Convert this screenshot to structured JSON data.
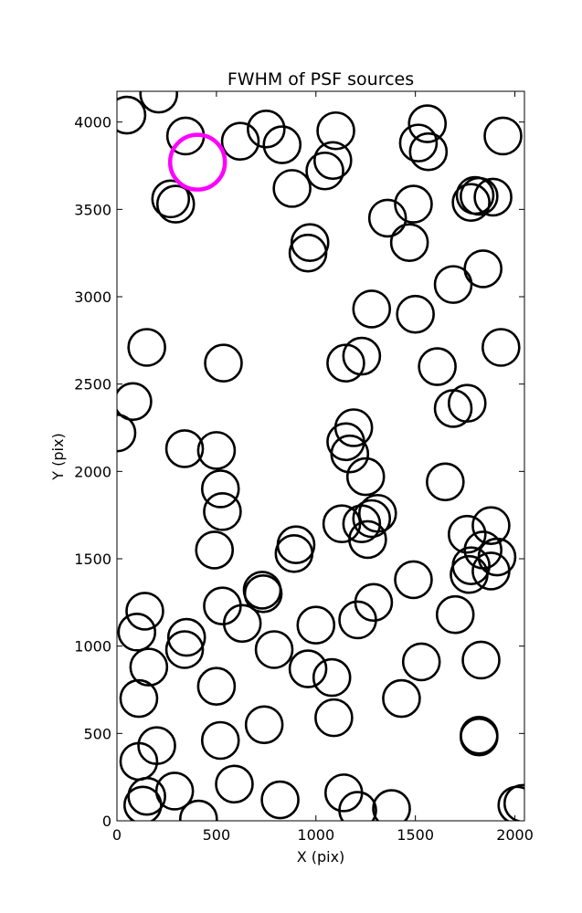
{
  "chart_data": {
    "type": "scatter",
    "title": "FWHM of PSF sources",
    "xlabel": "X (pix)",
    "ylabel": "Y (pix)",
    "xlim": [
      0,
      2048
    ],
    "ylim": [
      0,
      4176
    ],
    "grid": false,
    "xticks": [
      0,
      500,
      1000,
      1500,
      2000
    ],
    "yticks": [
      0,
      500,
      1000,
      1500,
      2000,
      2500,
      3000,
      3500,
      4000
    ],
    "marker": "hollow-circle",
    "default_color": "#000000",
    "highlight_color": "#ff00ff",
    "series": [
      {
        "points": [
          [
            50,
            4040
          ],
          [
            210,
            4160
          ],
          [
            345,
            3920
          ],
          [
            620,
            3890
          ],
          [
            750,
            3960
          ],
          [
            830,
            3870
          ],
          [
            1100,
            3950
          ],
          [
            1560,
            3990
          ],
          [
            1515,
            3880
          ],
          [
            1565,
            3830
          ],
          [
            1940,
            3920
          ],
          [
            1085,
            3780
          ],
          [
            1045,
            3720
          ],
          [
            880,
            3620
          ],
          [
            270,
            3560
          ],
          [
            295,
            3530
          ],
          [
            1490,
            3530
          ],
          [
            1780,
            3540
          ],
          [
            1800,
            3580
          ],
          [
            1820,
            3575
          ],
          [
            1890,
            3570
          ],
          [
            1360,
            3450
          ],
          [
            1470,
            3310
          ],
          [
            970,
            3310
          ],
          [
            960,
            3250
          ],
          [
            1690,
            3070
          ],
          [
            1840,
            3160
          ],
          [
            1280,
            2930
          ],
          [
            1500,
            2900
          ],
          [
            150,
            2710
          ],
          [
            535,
            2620
          ],
          [
            1150,
            2620
          ],
          [
            1230,
            2660
          ],
          [
            1610,
            2600
          ],
          [
            1930,
            2710
          ],
          [
            80,
            2400
          ],
          [
            1690,
            2360
          ],
          [
            1760,
            2390
          ],
          [
            0,
            2220
          ],
          [
            1190,
            2250
          ],
          [
            1150,
            2170
          ],
          [
            1170,
            2100
          ],
          [
            340,
            2130
          ],
          [
            500,
            2120
          ],
          [
            1250,
            1970
          ],
          [
            1650,
            1940
          ],
          [
            520,
            1900
          ],
          [
            530,
            1770
          ],
          [
            1130,
            1700
          ],
          [
            1230,
            1700
          ],
          [
            1280,
            1730
          ],
          [
            1310,
            1760
          ],
          [
            1260,
            1610
          ],
          [
            1760,
            1640
          ],
          [
            1880,
            1690
          ],
          [
            900,
            1580
          ],
          [
            890,
            1530
          ],
          [
            490,
            1550
          ],
          [
            1840,
            1550
          ],
          [
            1910,
            1510
          ],
          [
            1780,
            1460
          ],
          [
            1770,
            1410
          ],
          [
            1880,
            1430
          ],
          [
            1490,
            1380
          ],
          [
            730,
            1320
          ],
          [
            735,
            1300
          ],
          [
            530,
            1230
          ],
          [
            630,
            1130
          ],
          [
            1000,
            1120
          ],
          [
            1210,
            1150
          ],
          [
            1290,
            1250
          ],
          [
            1700,
            1180
          ],
          [
            140,
            1200
          ],
          [
            100,
            1080
          ],
          [
            350,
            1050
          ],
          [
            340,
            980
          ],
          [
            160,
            880
          ],
          [
            790,
            980
          ],
          [
            960,
            870
          ],
          [
            1080,
            820
          ],
          [
            1530,
            910
          ],
          [
            1830,
            920
          ],
          [
            500,
            770
          ],
          [
            110,
            700
          ],
          [
            1430,
            700
          ],
          [
            1090,
            590
          ],
          [
            740,
            550
          ],
          [
            520,
            460
          ],
          [
            1820,
            490
          ],
          [
            1820,
            480
          ],
          [
            200,
            430
          ],
          [
            110,
            340
          ],
          [
            290,
            170
          ],
          [
            150,
            140
          ],
          [
            130,
            90
          ],
          [
            590,
            210
          ],
          [
            820,
            120
          ],
          [
            1140,
            160
          ],
          [
            1210,
            60
          ],
          [
            1380,
            70
          ],
          [
            410,
            10
          ],
          [
            2010,
            90
          ],
          [
            2040,
            100
          ]
        ]
      },
      {
        "points": [
          [
            405,
            3770
          ]
        ],
        "highlight": true
      }
    ]
  }
}
